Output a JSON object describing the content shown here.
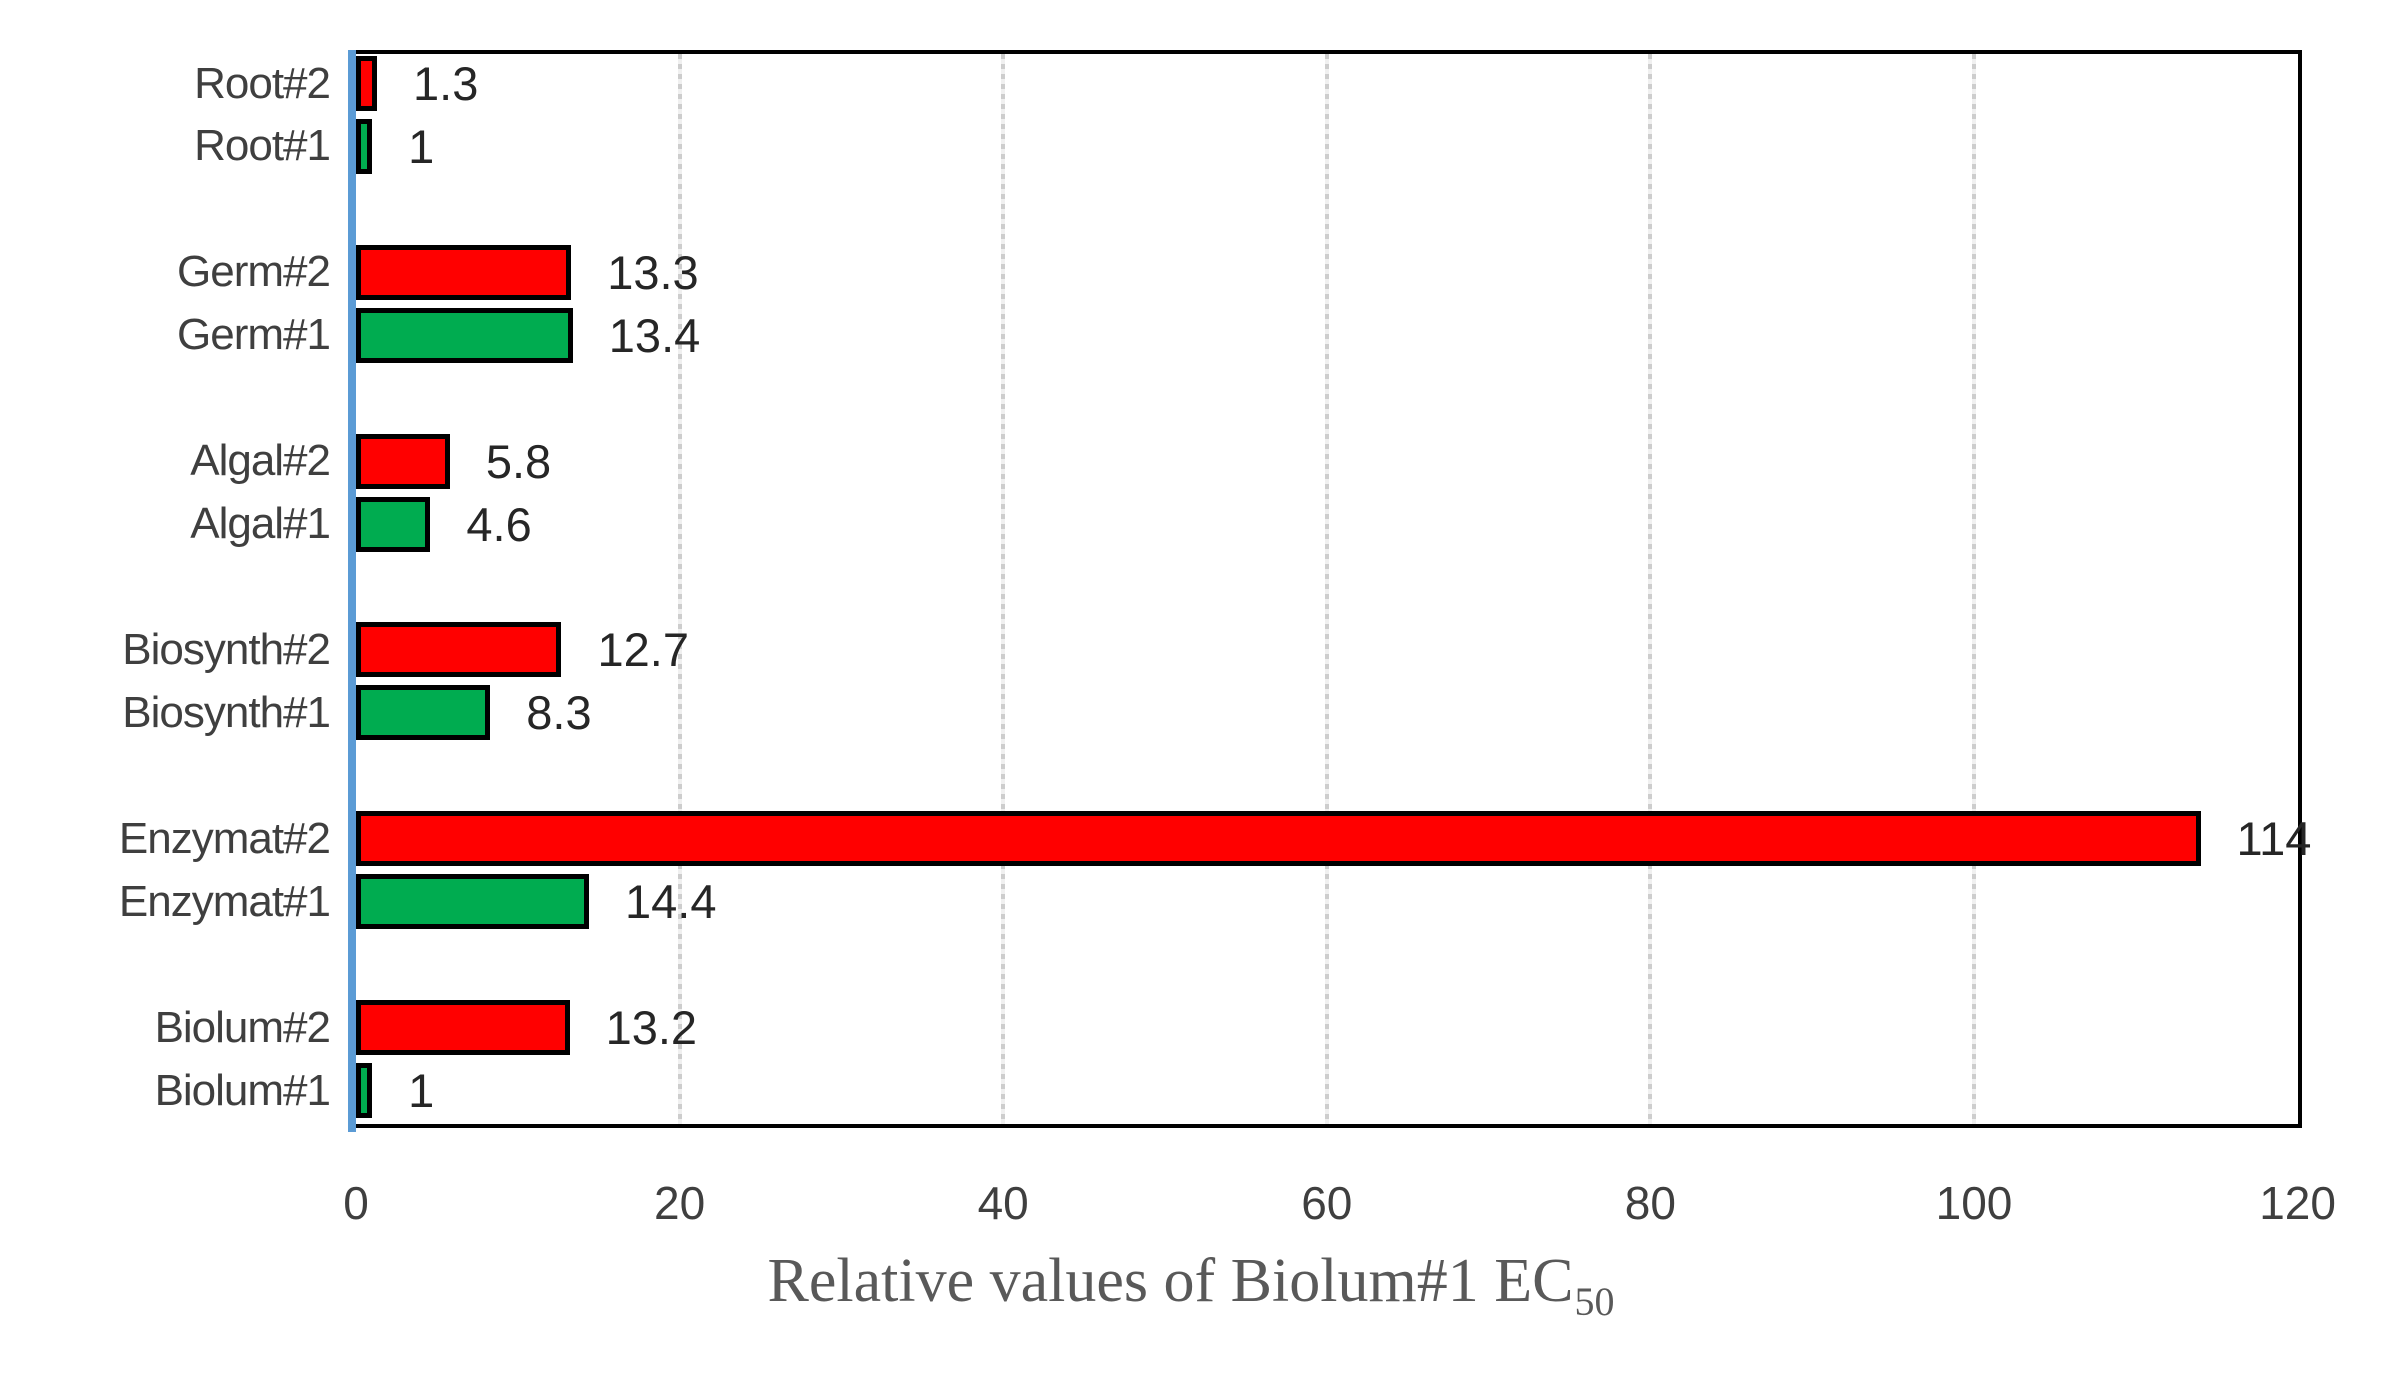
{
  "chart_data": {
    "type": "bar",
    "orientation": "horizontal",
    "xlabel": "Relative values of Biolum#1 EC50",
    "xlabel_main": "Relative values of Biolum#1 EC",
    "xlabel_subscript": "50",
    "xlim": [
      0,
      120
    ],
    "x_ticks": [
      "0",
      "20",
      "40",
      "60",
      "80",
      "100",
      "120"
    ],
    "grid": {
      "axis": "x",
      "interval": 20,
      "style": "dotted",
      "color": "#cdcdcd"
    },
    "axis_line_color": "#5b9bd5",
    "bar_border_color": "#000000",
    "colors": {
      "series2_red": "#ff0000",
      "series1_green": "#00ac50"
    },
    "bars": [
      {
        "label": "Root#2",
        "value": 1.3,
        "value_label": "1.3",
        "color": "#ff0000"
      },
      {
        "label": "Root#1",
        "value": 1,
        "value_label": "1",
        "color": "#00ac50"
      },
      {
        "label": "Germ#2",
        "value": 13.3,
        "value_label": "13.3",
        "color": "#ff0000"
      },
      {
        "label": "Germ#1",
        "value": 13.4,
        "value_label": "13.4",
        "color": "#00ac50"
      },
      {
        "label": "Algal#2",
        "value": 5.8,
        "value_label": "5.8",
        "color": "#ff0000"
      },
      {
        "label": "Algal#1",
        "value": 4.6,
        "value_label": "4.6",
        "color": "#00ac50"
      },
      {
        "label": "Biosynth#2",
        "value": 12.7,
        "value_label": "12.7",
        "color": "#ff0000"
      },
      {
        "label": "Biosynth#1",
        "value": 8.3,
        "value_label": "8.3",
        "color": "#00ac50"
      },
      {
        "label": "Enzymat#2",
        "value": 114,
        "value_label": "114",
        "color": "#ff0000"
      },
      {
        "label": "Enzymat#1",
        "value": 14.4,
        "value_label": "14.4",
        "color": "#00ac50"
      },
      {
        "label": "Biolum#2",
        "value": 13.2,
        "value_label": "13.2",
        "color": "#ff0000"
      },
      {
        "label": "Biolum#1",
        "value": 1,
        "value_label": "1",
        "color": "#00ac50"
      }
    ]
  }
}
